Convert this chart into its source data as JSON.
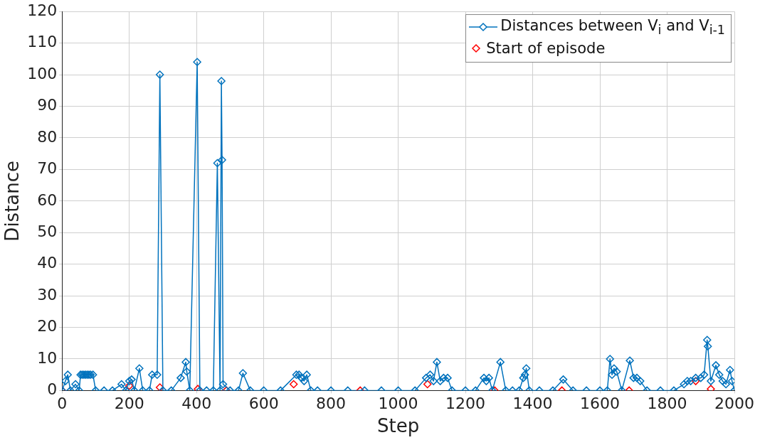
{
  "chart_data": {
    "type": "line",
    "xlabel": "Step",
    "ylabel": "Distance",
    "xlim": [
      0,
      2000
    ],
    "xticks": [
      0,
      200,
      400,
      600,
      800,
      1000,
      1200,
      1400,
      1600,
      1800,
      2000
    ],
    "ylim": [
      0,
      120
    ],
    "yticks": [
      0,
      10,
      20,
      30,
      40,
      50,
      60,
      70,
      80,
      90,
      100,
      110,
      120
    ],
    "grid": true,
    "legend": "top right",
    "marker": "diamond",
    "line_style": "solid",
    "series": [
      {
        "name": "Distances between V$_{i}$ and V$_{i-1}$",
        "color": "#0072bd",
        "x": [
          0,
          10,
          17,
          25,
          40,
          51,
          55,
          60,
          65,
          70,
          75,
          80,
          85,
          92,
          100,
          125,
          150,
          177,
          190,
          200,
          207,
          215,
          230,
          240,
          260,
          268,
          283,
          291,
          300,
          325,
          353,
          368,
          371,
          380,
          402,
          410,
          430,
          450,
          462,
          470,
          474,
          476,
          479,
          500,
          525,
          538,
          560,
          600,
          650,
          697,
          705,
          712,
          720,
          728,
          740,
          760,
          800,
          850,
          900,
          950,
          1000,
          1050,
          1083,
          1095,
          1105,
          1115,
          1125,
          1135,
          1147,
          1160,
          1200,
          1230,
          1255,
          1262,
          1270,
          1280,
          1304,
          1320,
          1340,
          1360,
          1372,
          1377,
          1381,
          1390,
          1420,
          1460,
          1491,
          1520,
          1560,
          1600,
          1622,
          1630,
          1636,
          1642,
          1650,
          1665,
          1689,
          1700,
          1710,
          1720,
          1740,
          1780,
          1820,
          1850,
          1860,
          1870,
          1885,
          1900,
          1910,
          1919,
          1921,
          1930,
          1945,
          1955,
          1965,
          1975,
          1987,
          1993,
          2000
        ],
        "values": [
          0,
          3,
          5,
          0,
          2,
          0,
          5,
          5,
          5,
          5,
          5,
          5,
          5,
          5,
          0,
          0,
          0,
          2,
          0,
          3,
          3.5,
          0,
          7,
          0,
          0,
          5,
          5,
          100,
          0,
          0,
          4,
          9,
          6,
          0,
          104,
          0,
          0,
          0,
          72,
          0,
          98,
          73,
          2,
          0,
          0,
          5.5,
          0,
          0,
          0,
          5,
          5,
          4,
          3,
          5,
          0,
          0,
          0,
          0,
          0,
          0,
          0,
          0,
          4,
          5,
          3,
          9,
          3,
          4,
          4,
          0,
          0,
          0,
          4,
          3,
          4,
          0,
          9,
          0,
          0,
          0,
          4,
          5,
          7,
          0,
          0,
          0,
          3.5,
          0,
          0,
          0,
          0,
          10,
          5,
          7,
          6,
          0,
          9.5,
          4,
          4,
          3,
          0,
          0,
          0,
          2,
          3,
          3,
          4,
          4,
          5,
          16,
          14,
          3,
          8,
          5,
          3,
          2,
          6.5,
          3,
          0
        ]
      },
      {
        "name": "Start of episode",
        "type": "scatter",
        "color": "#ff0000",
        "x": [
          0,
          200,
          291,
          404,
          489,
          689,
          887,
          1087,
          1287,
          1487,
          1687,
          1885,
          1930
        ],
        "values": [
          0,
          1.5,
          1,
          0.5,
          0,
          2,
          0,
          2,
          0,
          0,
          0,
          3,
          0.5
        ]
      }
    ]
  }
}
